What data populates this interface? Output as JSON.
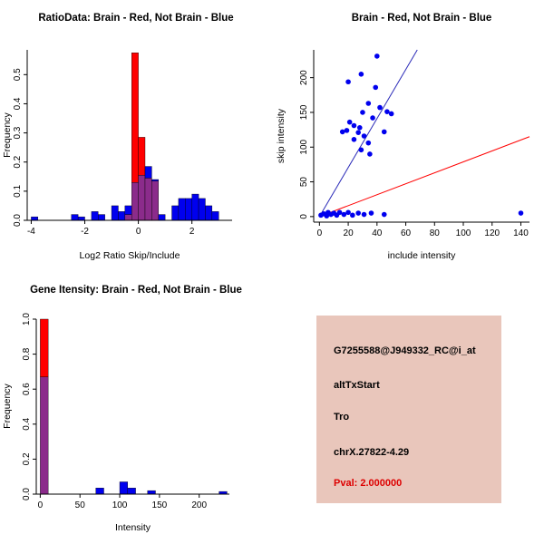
{
  "chart_data": [
    {
      "id": "ratio-histogram",
      "type": "bar",
      "subtype": "overlaid-histogram",
      "title": "RatioData: Brain - Red, Not Brain - Blue",
      "xlabel": "Log2 Ratio Skip/Include",
      "ylabel": "Frequency",
      "xlim": [
        -4.15,
        3.5
      ],
      "ylim": [
        0,
        0.585
      ],
      "xticks": [
        -4,
        -2,
        0,
        2
      ],
      "xtick_labels": [
        "-4",
        "-2",
        "0",
        "2"
      ],
      "yticks": [
        0,
        0.1,
        0.2,
        0.3,
        0.4,
        0.5
      ],
      "ytick_labels": [
        "0.0",
        "0.1",
        "0.2",
        "0.3",
        "0.4",
        "0.5"
      ],
      "grid": false,
      "legend": "encoded in title: Brain = red, Not Brain = blue, overlap = purple",
      "bin_width": 0.25,
      "overlap_color": "#8B2B8B",
      "series": [
        {
          "name": "Brain",
          "color": "#FF0000",
          "bins": [
            {
              "x": -0.5,
              "h": 0.02
            },
            {
              "x": -0.25,
              "h": 0.575
            },
            {
              "x": 0,
              "h": 0.285
            },
            {
              "x": 0.25,
              "h": 0.145
            },
            {
              "x": 0.5,
              "h": 0.135
            }
          ]
        },
        {
          "name": "Not Brain",
          "color": "#0000EE",
          "bins": [
            {
              "x": -4,
              "h": 0.012
            },
            {
              "x": -2.5,
              "h": 0.02
            },
            {
              "x": -2.25,
              "h": 0.012
            },
            {
              "x": -1.75,
              "h": 0.03
            },
            {
              "x": -1.5,
              "h": 0.02
            },
            {
              "x": -1,
              "h": 0.05
            },
            {
              "x": -0.75,
              "h": 0.03
            },
            {
              "x": -0.5,
              "h": 0.05
            },
            {
              "x": -0.25,
              "h": 0.13
            },
            {
              "x": 0,
              "h": 0.155
            },
            {
              "x": 0.25,
              "h": 0.185
            },
            {
              "x": 0.5,
              "h": 0.14
            },
            {
              "x": 0.75,
              "h": 0.02
            },
            {
              "x": 1.25,
              "h": 0.05
            },
            {
              "x": 1.5,
              "h": 0.075
            },
            {
              "x": 1.75,
              "h": 0.075
            },
            {
              "x": 2,
              "h": 0.09
            },
            {
              "x": 2.25,
              "h": 0.075
            },
            {
              "x": 2.5,
              "h": 0.05
            },
            {
              "x": 2.75,
              "h": 0.03
            }
          ]
        }
      ]
    },
    {
      "id": "intensity-scatter",
      "type": "scatter",
      "title": "Brain - Red, Not Brain - Blue",
      "xlabel": "include intensity",
      "ylabel": "skip intensity",
      "xlim": [
        -4,
        146
      ],
      "ylim": [
        -8,
        240
      ],
      "xticks": [
        0,
        20,
        40,
        60,
        80,
        100,
        120,
        140
      ],
      "xtick_labels": [
        "0",
        "20",
        "40",
        "60",
        "80",
        "100",
        "120",
        "140"
      ],
      "yticks": [
        0,
        50,
        100,
        150,
        200
      ],
      "ytick_labels": [
        "0",
        "50",
        "100",
        "150",
        "200"
      ],
      "grid": false,
      "point_color": "#0000EE",
      "points": [
        [
          1,
          2
        ],
        [
          3,
          4
        ],
        [
          5,
          1
        ],
        [
          6,
          6
        ],
        [
          8,
          3
        ],
        [
          10,
          5
        ],
        [
          12,
          2
        ],
        [
          14,
          6
        ],
        [
          17,
          3
        ],
        [
          20,
          6
        ],
        [
          23,
          2
        ],
        [
          27,
          5
        ],
        [
          31,
          3
        ],
        [
          36,
          5
        ],
        [
          45,
          3
        ],
        [
          140,
          5
        ],
        [
          16,
          122
        ],
        [
          19,
          124
        ],
        [
          20,
          194
        ],
        [
          21,
          136
        ],
        [
          24,
          131
        ],
        [
          24,
          111
        ],
        [
          27,
          121
        ],
        [
          28,
          128
        ],
        [
          29,
          205
        ],
        [
          29,
          96
        ],
        [
          30,
          150
        ],
        [
          31,
          116
        ],
        [
          34,
          163
        ],
        [
          34,
          106
        ],
        [
          35,
          90
        ],
        [
          37,
          142
        ],
        [
          39,
          186
        ],
        [
          40,
          231
        ],
        [
          42,
          157
        ],
        [
          45,
          122
        ],
        [
          47,
          151
        ],
        [
          50,
          148
        ]
      ],
      "lines": [
        {
          "name": "brain-trend",
          "color": "#2A2AB8",
          "from": [
            0,
            0
          ],
          "to": [
            68,
            240
          ]
        },
        {
          "name": "not-brain-trend",
          "color": "#FF0000",
          "from": [
            0,
            0
          ],
          "to": [
            146,
            115
          ]
        }
      ]
    },
    {
      "id": "gene-intensity-histogram",
      "type": "bar",
      "subtype": "overlaid-histogram",
      "title": "Gene Itensity: Brain - Red, Not Brain - Blue",
      "xlabel": "Intensity",
      "ylabel": "Frequency",
      "xlim": [
        -5,
        238
      ],
      "ylim": [
        0,
        1.0
      ],
      "xticks": [
        0,
        50,
        100,
        150,
        200
      ],
      "xtick_labels": [
        "0",
        "50",
        "100",
        "150",
        "200"
      ],
      "yticks": [
        0,
        0.2,
        0.4,
        0.6,
        0.8,
        1.0
      ],
      "ytick_labels": [
        "0.0",
        "0.2",
        "0.4",
        "0.6",
        "0.8",
        "1.0"
      ],
      "grid": false,
      "bin_width": 10,
      "overlap_color": "#8B2B8B",
      "series": [
        {
          "name": "Brain",
          "color": "#FF0000",
          "bins": [
            {
              "x": 0,
              "h": 1.0
            }
          ]
        },
        {
          "name": "Not Brain",
          "color": "#0000EE",
          "bins": [
            {
              "x": 0,
              "h": 0.67
            },
            {
              "x": 70,
              "h": 0.035
            },
            {
              "x": 100,
              "h": 0.07
            },
            {
              "x": 110,
              "h": 0.035
            },
            {
              "x": 135,
              "h": 0.02
            },
            {
              "x": 225,
              "h": 0.015
            }
          ]
        }
      ]
    }
  ],
  "info_panel": {
    "background": "#E9C6BB",
    "lines": [
      {
        "text": "G7255588@J949332_RC@i_at",
        "color": "#000000"
      },
      {
        "text": "altTxStart",
        "color": "#000000"
      },
      {
        "text": "Tro",
        "color": "#000000"
      },
      {
        "text": "chrX.27822-4.29",
        "color": "#000000"
      },
      {
        "text": "Pval: 2.000000",
        "color": "#DD0000"
      }
    ]
  }
}
